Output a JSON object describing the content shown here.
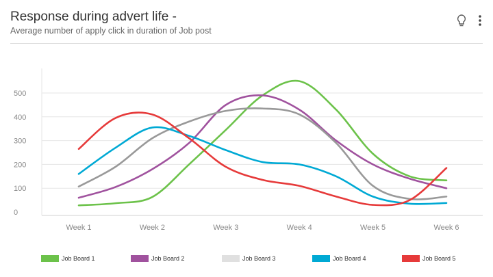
{
  "header": {
    "title": "Response during advert life -",
    "subtitle": "Average number of apply click in duration of Job post",
    "icons": [
      "lightbulb-icon",
      "more-vertical-icon"
    ]
  },
  "chart_data": {
    "type": "line",
    "title": "Response during advert life -",
    "subtitle": "Average number of apply click in duration of Job post",
    "categories": [
      "Week 1",
      "Week 2",
      "Week 3",
      "Week 4",
      "Week 5",
      "Week 6"
    ],
    "x": [
      1,
      1.5,
      2,
      2.5,
      3,
      3.5,
      4,
      4.5,
      5,
      5.5,
      6
    ],
    "ylim": [
      0,
      550
    ],
    "yticks": [
      0,
      100,
      200,
      300,
      400,
      500
    ],
    "grid": true,
    "legend": "bottom",
    "series": [
      {
        "name": "Job Board 1",
        "color": "#6cc24a",
        "values": [
          28,
          37,
          63,
          200,
          345,
          490,
          550,
          430,
          245,
          150,
          133
        ]
      },
      {
        "name": "Job Board 2",
        "color": "#a0529e",
        "values": [
          60,
          105,
          180,
          290,
          450,
          490,
          430,
          300,
          200,
          140,
          100
        ]
      },
      {
        "name": "Job Board 3",
        "color": "#999999",
        "legend_color": "#e0e0e0",
        "values": [
          107,
          190,
          310,
          380,
          425,
          435,
          410,
          290,
          110,
          55,
          65
        ]
      },
      {
        "name": "Job Board 4",
        "color": "#00a9d4",
        "values": [
          160,
          270,
          355,
          320,
          260,
          210,
          200,
          150,
          65,
          35,
          38
        ]
      },
      {
        "name": "Job Board 5",
        "color": "#e63a3a",
        "values": [
          265,
          395,
          410,
          310,
          190,
          135,
          110,
          65,
          30,
          50,
          185
        ]
      }
    ]
  }
}
